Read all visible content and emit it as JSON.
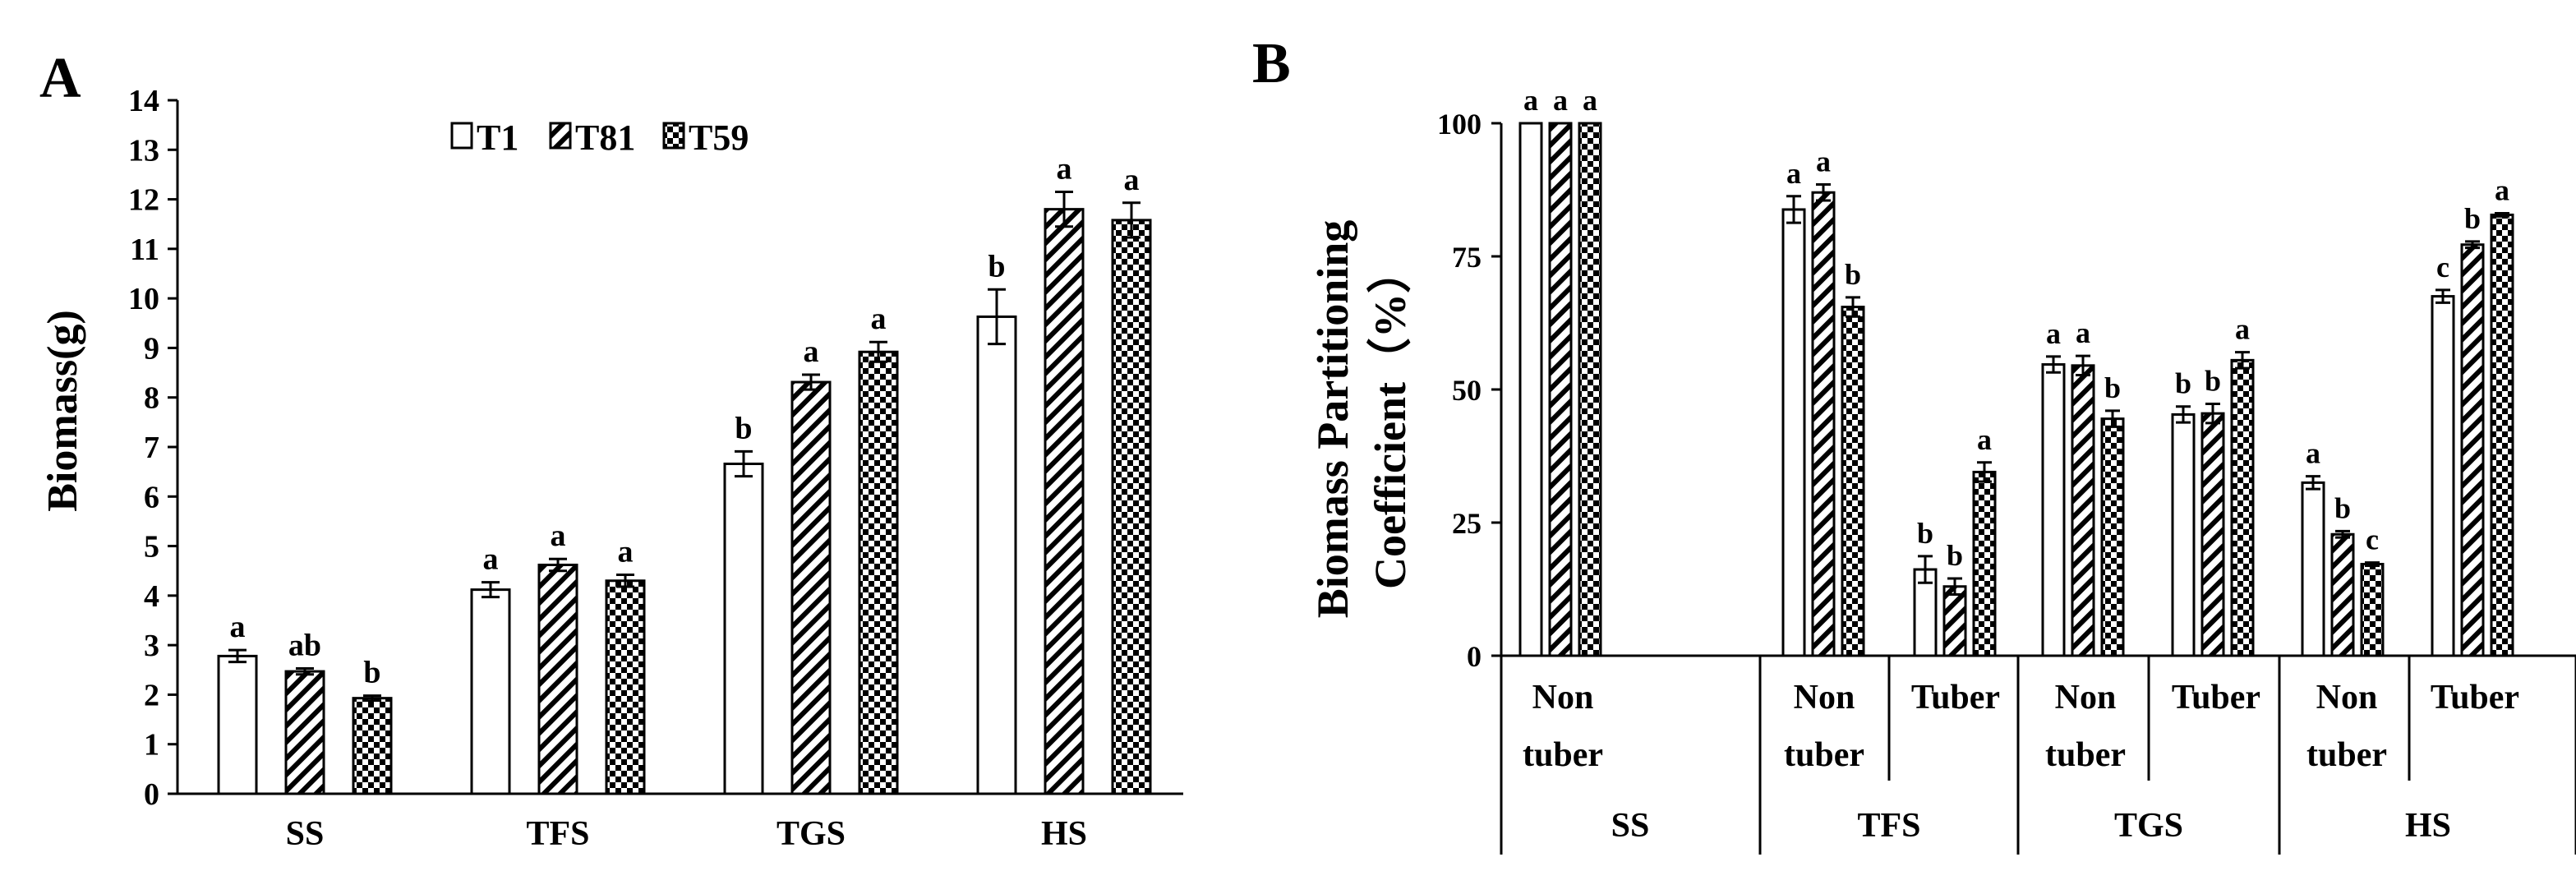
{
  "chart_data": [
    {
      "panel_label": "A",
      "type": "bar",
      "title": "",
      "xlabel": "",
      "ylabel": "Biomass(g)",
      "ylim": [
        0,
        14
      ],
      "yticks": [
        "0",
        "1",
        "2",
        "3",
        "4",
        "5",
        "6",
        "7",
        "8",
        "9",
        "10",
        "11",
        "12",
        "13",
        "14"
      ],
      "categories": [
        "SS",
        "TFS",
        "TGS",
        "HS"
      ],
      "legend_position": "top-center",
      "grid": false,
      "series": [
        {
          "name": "T1",
          "pattern": "open",
          "values": [
            2.78,
            4.12,
            6.66,
            9.63
          ],
          "errors": [
            0.12,
            0.15,
            0.25,
            0.55
          ],
          "letters": [
            "a",
            "a",
            "b",
            "b"
          ]
        },
        {
          "name": "T81",
          "pattern": "hatched",
          "values": [
            2.47,
            4.62,
            8.31,
            11.8
          ],
          "errors": [
            0.06,
            0.12,
            0.15,
            0.35
          ],
          "letters": [
            "ab",
            "a",
            "a",
            "a"
          ]
        },
        {
          "name": "T59",
          "pattern": "checked",
          "values": [
            1.93,
            4.3,
            8.92,
            11.58
          ],
          "errors": [
            0.05,
            0.12,
            0.2,
            0.35
          ],
          "letters": [
            "b",
            "a",
            "a",
            "a"
          ]
        }
      ]
    },
    {
      "panel_label": "B",
      "type": "bar",
      "title": "",
      "xlabel": "",
      "ylabel_lines": [
        "Biomass Partitioning",
        "Coefficient（%）"
      ],
      "ylim": [
        0,
        100
      ],
      "yticks": [
        "0",
        "25",
        "50",
        "75",
        "100"
      ],
      "grid": false,
      "groups": [
        {
          "name": "SS",
          "subcategories": [
            [
              "Non",
              "tuber"
            ]
          ]
        },
        {
          "name": "TFS",
          "subcategories": [
            [
              "Non",
              "tuber"
            ],
            [
              "Tuber"
            ]
          ]
        },
        {
          "name": "TGS",
          "subcategories": [
            [
              "Non",
              "tuber"
            ],
            [
              "Tuber"
            ]
          ]
        },
        {
          "name": "HS",
          "subcategories": [
            [
              "Non",
              "tuber"
            ],
            [
              "Tuber"
            ]
          ]
        }
      ],
      "categories": [
        "SS Non tuber",
        "TFS Non tuber",
        "TFS Tuber",
        "TGS Non tuber",
        "TGS Tuber",
        "HS Non tuber",
        "HS Tuber"
      ],
      "series": [
        {
          "name": "T1",
          "pattern": "open",
          "values": [
            100,
            83.8,
            16.2,
            54.7,
            45.3,
            32.5,
            67.5
          ],
          "errors": [
            0,
            2.5,
            2.5,
            1.5,
            1.5,
            1.2,
            1.2
          ],
          "letters": [
            "a",
            "a",
            "b",
            "a",
            "b",
            "a",
            "c"
          ]
        },
        {
          "name": "T81",
          "pattern": "hatched",
          "values": [
            100,
            87.0,
            13.0,
            54.5,
            45.5,
            22.8,
            77.2
          ],
          "errors": [
            0,
            1.5,
            1.5,
            1.8,
            1.8,
            0.6,
            0.6
          ],
          "letters": [
            "a",
            "a",
            "b",
            "a",
            "b",
            "b",
            "b"
          ]
        },
        {
          "name": "T59",
          "pattern": "checked",
          "values": [
            100,
            65.5,
            34.5,
            44.5,
            55.5,
            17.2,
            82.8
          ],
          "errors": [
            0,
            1.8,
            1.8,
            1.5,
            1.5,
            0.3,
            0.3
          ],
          "letters": [
            "a",
            "b",
            "a",
            "b",
            "a",
            "c",
            "a"
          ]
        }
      ]
    }
  ]
}
